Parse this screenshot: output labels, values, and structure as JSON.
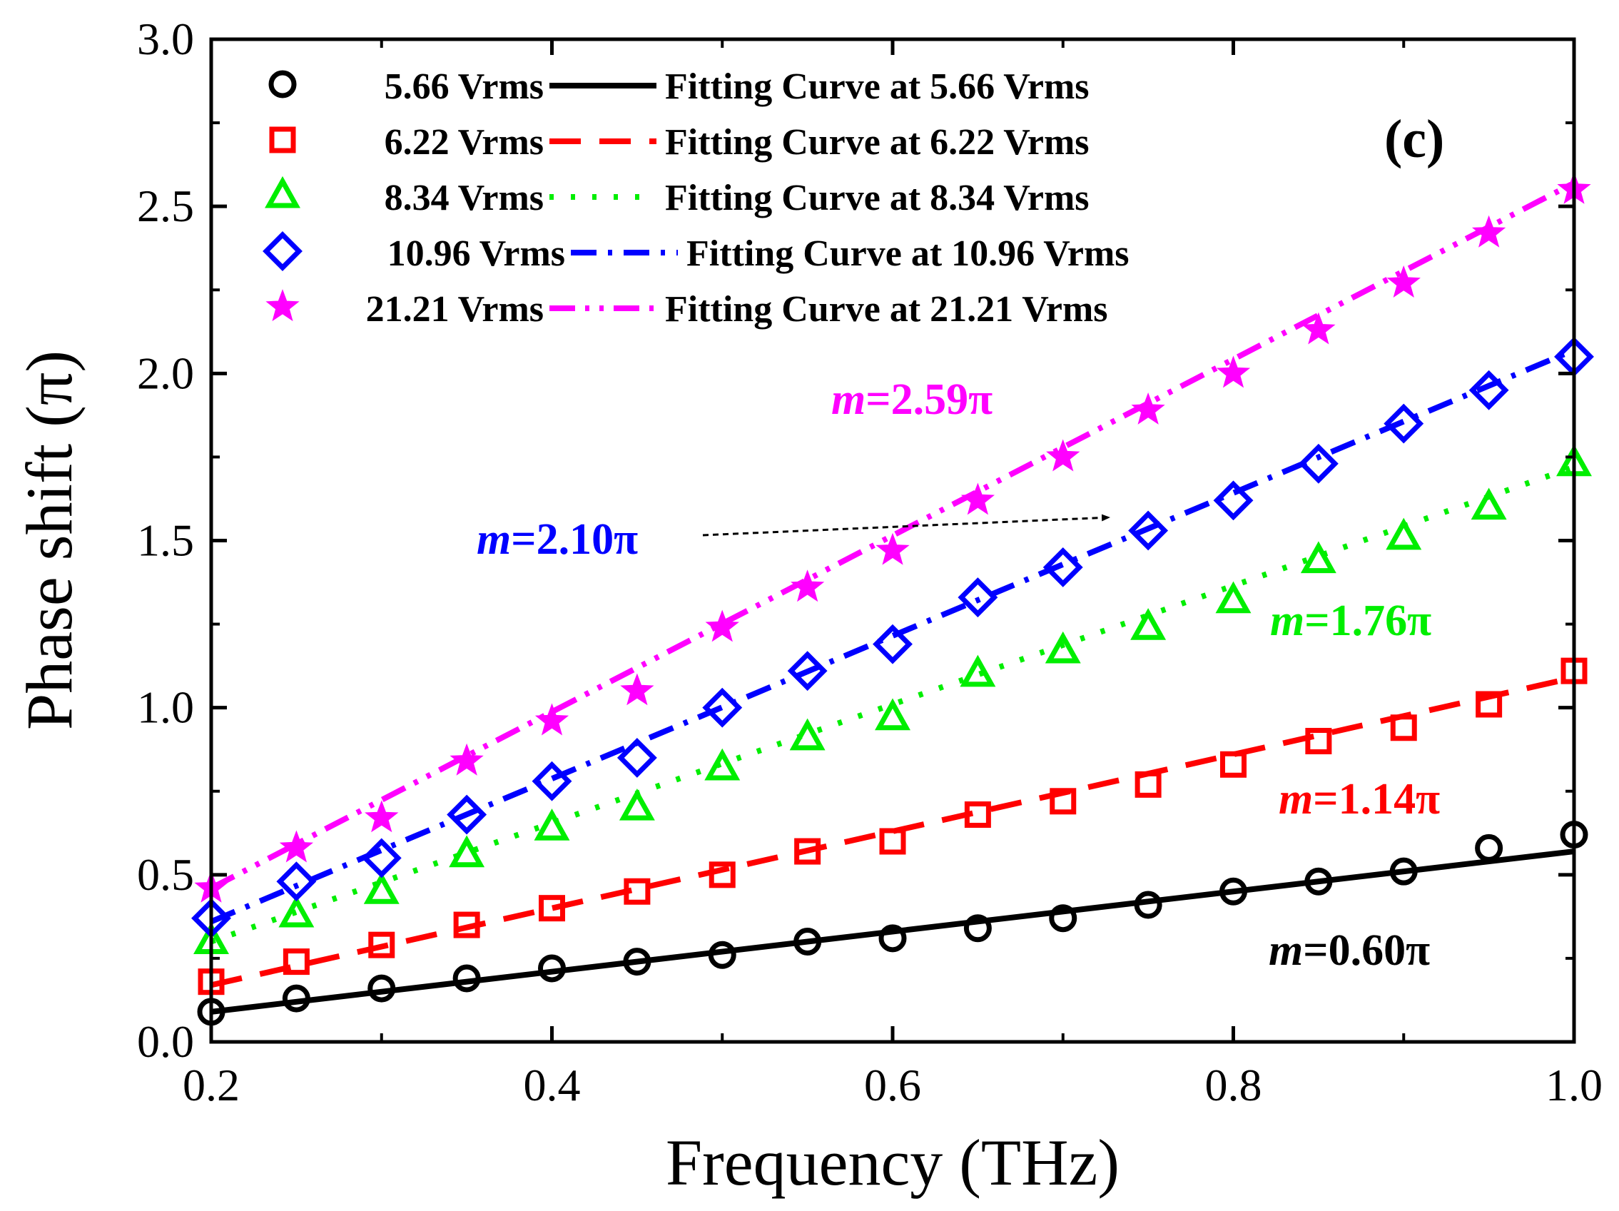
{
  "chart_data": {
    "type": "scatter",
    "panel_label": "(c)",
    "xlabel": "Frequency (THz)",
    "ylabel": "Phase shift (π)",
    "xlim": [
      0.2,
      1.0
    ],
    "ylim": [
      0.0,
      3.0
    ],
    "x_ticks": [
      "0.2",
      "0.4",
      "0.6",
      "0.8",
      "1.0"
    ],
    "y_ticks": [
      "0.0",
      "0.5",
      "1.0",
      "1.5",
      "2.0",
      "2.5",
      "3.0"
    ],
    "x": [
      0.2,
      0.25,
      0.3,
      0.35,
      0.4,
      0.45,
      0.5,
      0.55,
      0.6,
      0.65,
      0.7,
      0.75,
      0.8,
      0.85,
      0.9,
      0.95,
      1.0
    ],
    "series": [
      {
        "name": "5.66 Vrms",
        "fit_name": "Fitting Curve at   5.66 Vrms",
        "color": "#000000",
        "marker": "circle",
        "line_style": "solid",
        "values": [
          0.09,
          0.13,
          0.16,
          0.19,
          0.22,
          0.24,
          0.26,
          0.3,
          0.31,
          0.34,
          0.37,
          0.41,
          0.45,
          0.48,
          0.51,
          0.58,
          0.62
        ],
        "fit_line": [
          0.09,
          0.57
        ]
      },
      {
        "name": "6.22 Vrms",
        "fit_name": "Fitting Curve at   6.22 Vrms",
        "color": "#ff0000",
        "marker": "square",
        "line_style": "dash",
        "values": [
          0.18,
          0.24,
          0.29,
          0.35,
          0.4,
          0.45,
          0.5,
          0.57,
          0.6,
          0.68,
          0.72,
          0.77,
          0.83,
          0.9,
          0.94,
          1.01,
          1.11
        ],
        "fit_line": [
          0.17,
          1.09
        ]
      },
      {
        "name": "8.34 Vrms",
        "fit_name": "Fitting Curve at   8.34 Vrms",
        "color": "#00ee00",
        "marker": "triangle",
        "line_style": "dot",
        "values": [
          0.3,
          0.38,
          0.45,
          0.56,
          0.64,
          0.7,
          0.82,
          0.91,
          0.97,
          1.1,
          1.17,
          1.24,
          1.32,
          1.44,
          1.51,
          1.6,
          1.73
        ],
        "fit_line": [
          0.3,
          1.72
        ]
      },
      {
        "name": "10.96 Vrms",
        "fit_name": "Fitting Curve at   10.96 Vrms",
        "color": "#0000ff",
        "marker": "diamond",
        "line_style": "dashdot",
        "values": [
          0.37,
          0.48,
          0.55,
          0.68,
          0.78,
          0.85,
          1.0,
          1.11,
          1.19,
          1.33,
          1.42,
          1.53,
          1.62,
          1.73,
          1.85,
          1.95,
          2.05
        ],
        "fit_line": [
          0.36,
          2.07
        ]
      },
      {
        "name": "21.21 Vrms",
        "fit_name": "Fitting Curve at 21.21 Vrms",
        "color": "#ff00ff",
        "marker": "star",
        "line_style": "dashdotdot",
        "values": [
          0.46,
          0.58,
          0.67,
          0.84,
          0.96,
          1.05,
          1.24,
          1.36,
          1.47,
          1.62,
          1.75,
          1.89,
          2.0,
          2.13,
          2.27,
          2.42,
          2.55
        ],
        "fit_line": [
          0.46,
          2.57
        ]
      }
    ],
    "annotations": [
      {
        "italic": "m",
        "text": "=2.59π",
        "color": "#ff00ff"
      },
      {
        "italic": "m",
        "text": "=2.10π",
        "color": "#0000ff",
        "arrow": true
      },
      {
        "italic": "m",
        "text": "=1.76π",
        "color": "#00ee00"
      },
      {
        "italic": "m",
        "text": "=1.14π",
        "color": "#ff0000"
      },
      {
        "italic": "m",
        "text": "=0.60π",
        "color": "#000000"
      }
    ],
    "legend_position": "top-left",
    "grid": false
  }
}
